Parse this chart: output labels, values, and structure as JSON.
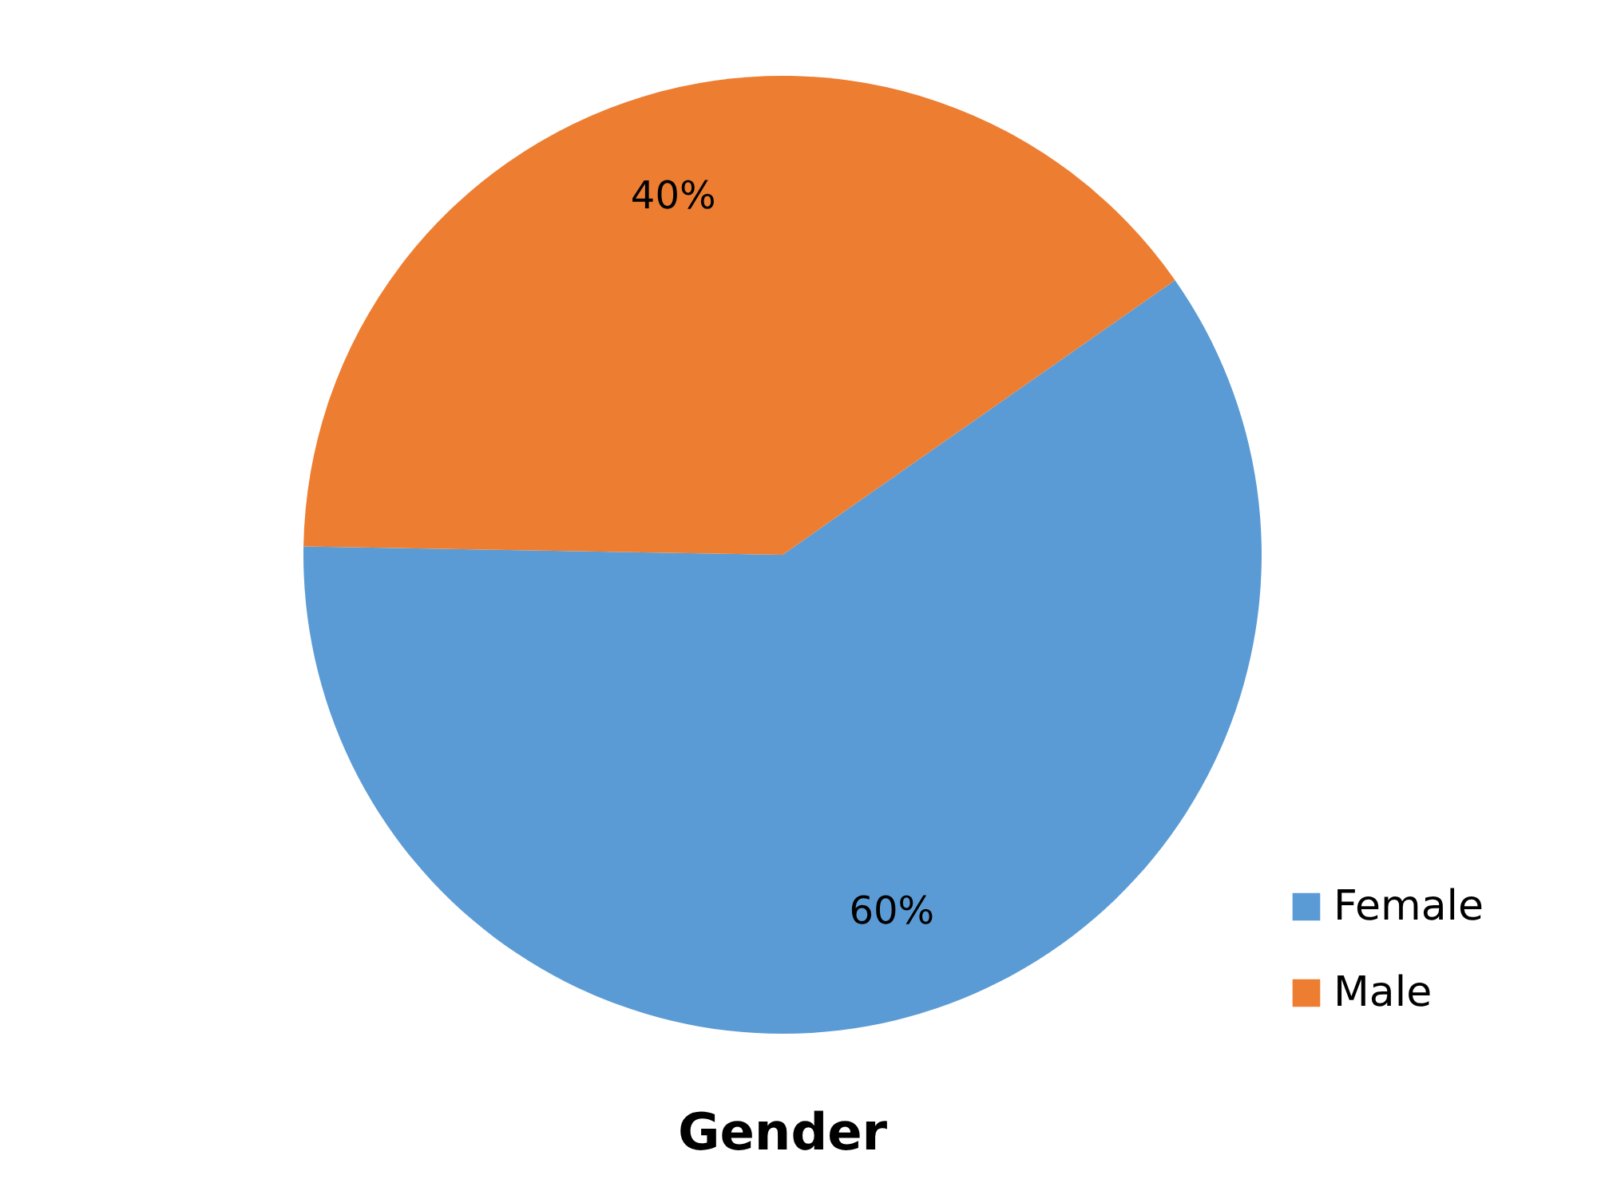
{
  "chart_data": {
    "type": "pie",
    "title": "Gender",
    "categories": [
      "Female",
      "Male"
    ],
    "values": [
      60,
      40
    ],
    "colors": [
      "#5b9bd5",
      "#ed7d31"
    ],
    "value_labels": [
      "60%",
      "40%"
    ],
    "legend": "bottom right"
  }
}
